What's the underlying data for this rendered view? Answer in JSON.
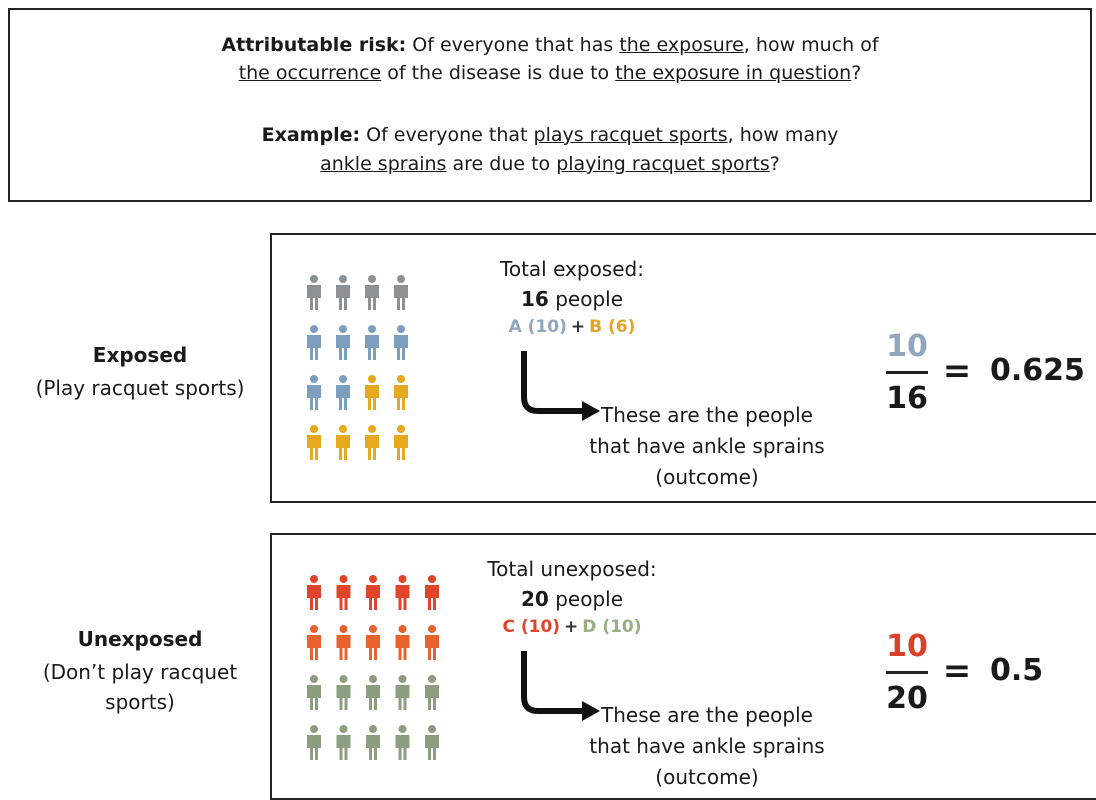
{
  "header": {
    "definition": {
      "label": "Attributable risk:",
      "lines": [
        [
          {
            "text": "Of everyone that has "
          },
          {
            "text": "the exposure",
            "underline": true
          },
          {
            "text": ", how much of"
          }
        ],
        [
          {
            "text": "the occurrence",
            "underline": true
          },
          {
            "text": " of the disease is due to "
          },
          {
            "text": "the exposure in question",
            "underline": true
          },
          {
            "text": "?"
          }
        ]
      ]
    },
    "example": {
      "label": "Example:",
      "lines": [
        [
          {
            "text": "Of everyone that "
          },
          {
            "text": "plays racquet sports",
            "underline": true
          },
          {
            "text": ", how many"
          }
        ],
        [
          {
            "text": "ankle sprains",
            "underline": true
          },
          {
            "text": " are due to "
          },
          {
            "text": "playing racquet sports",
            "underline": true
          },
          {
            "text": "?"
          }
        ]
      ]
    }
  },
  "panels": [
    {
      "label": "Exposed",
      "sublabel": "(Play racquet sports)",
      "columns": 4,
      "icons": [
        {
          "color": "#8c9196",
          "count": 4
        },
        {
          "color": "#7d9fbf",
          "count": 6
        },
        {
          "color": "#e6a91e",
          "count": 6
        }
      ],
      "heading": "Total exposed:",
      "total": "16",
      "unit": "people",
      "formula": [
        {
          "text": "A (10)",
          "color": "#8fa6bd"
        },
        {
          "text": "+",
          "color": "#333333"
        },
        {
          "text": "B (6)",
          "color": "#e0a526"
        }
      ],
      "note": [
        "These are the people",
        "that have ankle sprains",
        "(outcome)"
      ],
      "numerator": "10",
      "numerator_color": "#8fa6bd",
      "denominator": "16",
      "equals": "=",
      "result": "0.625"
    },
    {
      "label": "Unexposed",
      "sublabel": "(Don’t play racquet sports)",
      "columns": 5,
      "icons": [
        {
          "color": "#e0452a",
          "count": 5
        },
        {
          "color": "#e8622e",
          "count": 5
        },
        {
          "color": "#8d9e80",
          "count": 10
        }
      ],
      "heading": "Total unexposed:",
      "total": "20",
      "unit": "people",
      "formula": [
        {
          "text": "C (10)",
          "color": "#e0452a"
        },
        {
          "text": "+",
          "color": "#333333"
        },
        {
          "text": "D (10)",
          "color": "#9aae86"
        }
      ],
      "note": [
        "These are the people",
        "that have ankle sprains",
        "(outcome)"
      ],
      "numerator": "10",
      "numerator_color": "#d9412b",
      "denominator": "20",
      "equals": "=",
      "result": "0.5"
    }
  ]
}
